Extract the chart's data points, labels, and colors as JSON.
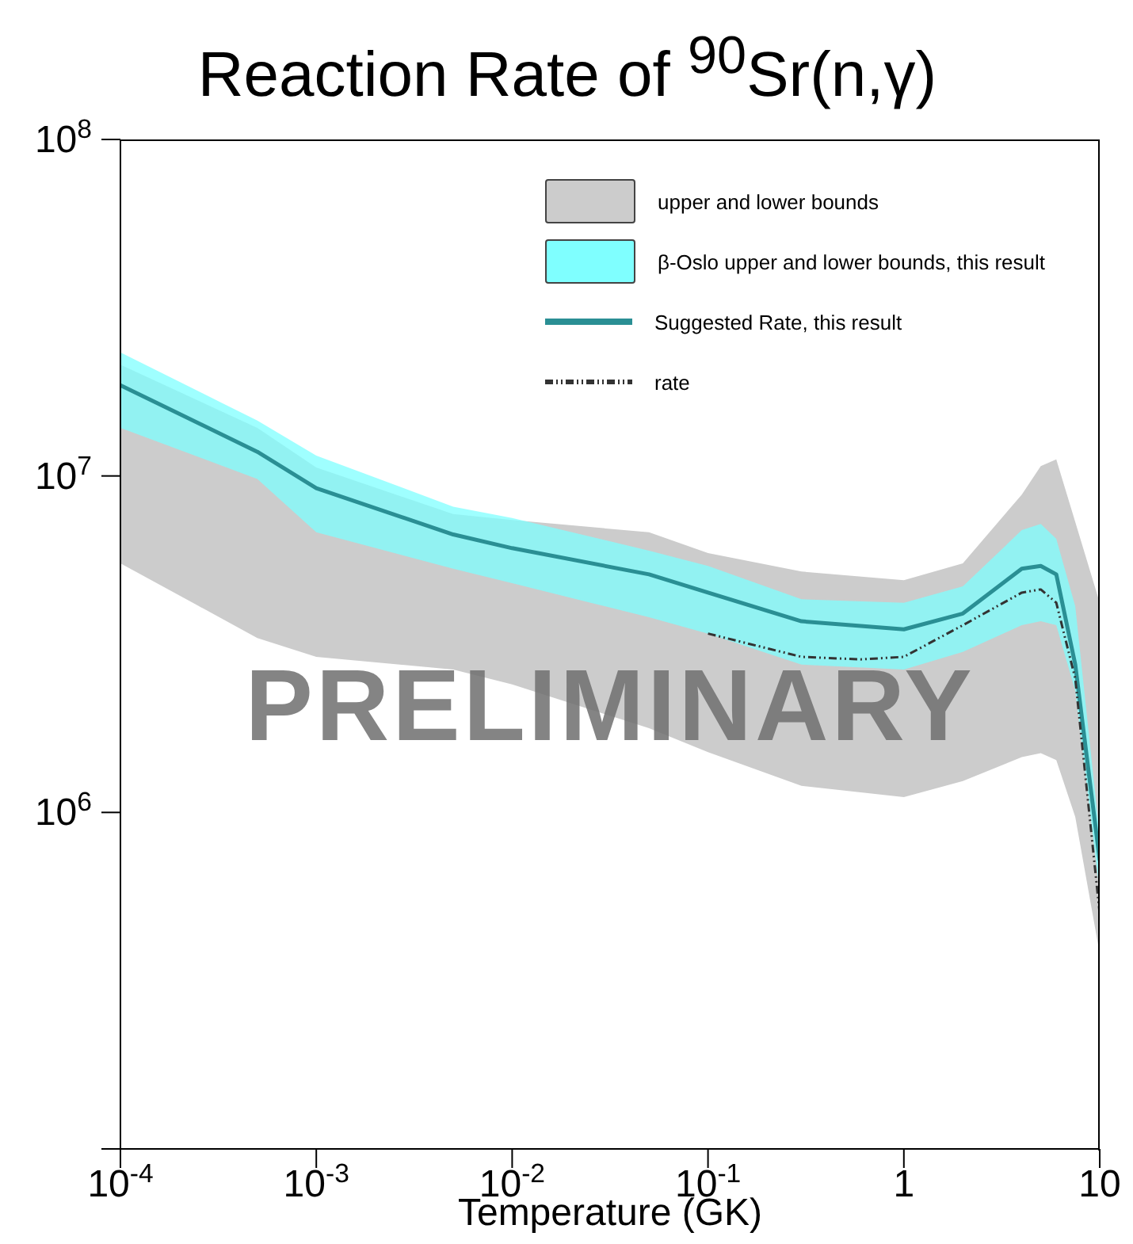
{
  "chart_data": {
    "type": "line",
    "title": "Reaction Rate of $^{90}$Sr(n,γ)",
    "xlabel": "Temperature (GK)",
    "log": "xy",
    "xlim": [
      0.0001,
      10
    ],
    "ylim": [
      100000,
      100000000
    ],
    "xticks": [
      {
        "value": 0.0001,
        "label": "10$^{-4}$"
      },
      {
        "value": 0.001,
        "label": "10$^{-3}$"
      },
      {
        "value": 0.01,
        "label": "10$^{-2}$"
      },
      {
        "value": 0.1,
        "label": "10$^{-1}$"
      },
      1,
      10
    ],
    "yticks": [
      {
        "value": 100000,
        "label": null
      },
      {
        "value": 1000000,
        "label": "10$^{6}$"
      },
      {
        "value": 10000000,
        "label": "10$^{7}$"
      },
      {
        "value": 100000000,
        "label": "10$^{8}$"
      }
    ],
    "legend": "top right",
    "annotations": [
      "PRELIMINARY"
    ],
    "series": [
      {
        "name": "upper and lower bounds",
        "type": "area",
        "color": "#cccccc",
        "x": [
          0.0001,
          0.0005,
          0.001,
          0.005,
          0.01,
          0.05,
          0.1,
          0.3,
          1,
          2,
          4,
          5,
          6,
          7.5,
          10
        ],
        "values": [
          null,
          null,
          null,
          null,
          null,
          null,
          null,
          null,
          null,
          null,
          null,
          null,
          null,
          null,
          null
        ],
        "lower": [
          5500000,
          3300000,
          2900000,
          2660000,
          2400000,
          1780000,
          1510000,
          1200000,
          1110000,
          1240000,
          1460000,
          1500000,
          1430000,
          970000,
          380000
        ],
        "upper": [
          21400000,
          13900000,
          10600000,
          7700000,
          7400000,
          6800000,
          5900000,
          5200000,
          4900000,
          5500000,
          8800000,
          10700000,
          11200000,
          7300000,
          4200000
        ]
      },
      {
        "name": "β-Oslo upper and lower bounds, this result",
        "type": "area",
        "color": "#7fffff",
        "x": [
          0.0001,
          0.0005,
          0.001,
          0.005,
          0.01,
          0.05,
          0.1,
          0.3,
          1,
          2,
          4,
          5,
          6,
          7.5,
          10
        ],
        "values": [
          null,
          null,
          null,
          null,
          null,
          null,
          null,
          null,
          null,
          null,
          null,
          null,
          null,
          null,
          null
        ],
        "lower": [
          13900000,
          9800000,
          6800000,
          5300000,
          4800000,
          3800000,
          3400000,
          2750000,
          2660000,
          3000000,
          3600000,
          3700000,
          3600000,
          2300000,
          580000
        ],
        "upper": [
          23300000,
          14600000,
          11500000,
          8100000,
          7500000,
          6000000,
          5400000,
          4300000,
          4200000,
          4700000,
          6900000,
          7200000,
          6500000,
          4100000,
          850000
        ]
      },
      {
        "name": "Suggested Rate, this result",
        "color": "#2a8f94",
        "line_style": "solid",
        "x": [
          0.0001,
          0.0005,
          0.001,
          0.005,
          0.01,
          0.05,
          0.1,
          0.3,
          1,
          2,
          4,
          5,
          6,
          7.5,
          10
        ],
        "values": [
          18600000,
          11800000,
          9200000,
          6700000,
          6100000,
          5100000,
          4500000,
          3700000,
          3500000,
          3900000,
          5300000,
          5400000,
          5100000,
          2750000,
          720000
        ]
      },
      {
        "name": "rate",
        "color": "#333333",
        "line_style": "dashed",
        "x": [
          0.1,
          0.3,
          0.6,
          1,
          2,
          4,
          5,
          6,
          7.5,
          10
        ],
        "values": [
          3400000,
          2900000,
          2850000,
          2900000,
          3600000,
          4500000,
          4600000,
          4200000,
          2500000,
          500000
        ]
      }
    ]
  }
}
